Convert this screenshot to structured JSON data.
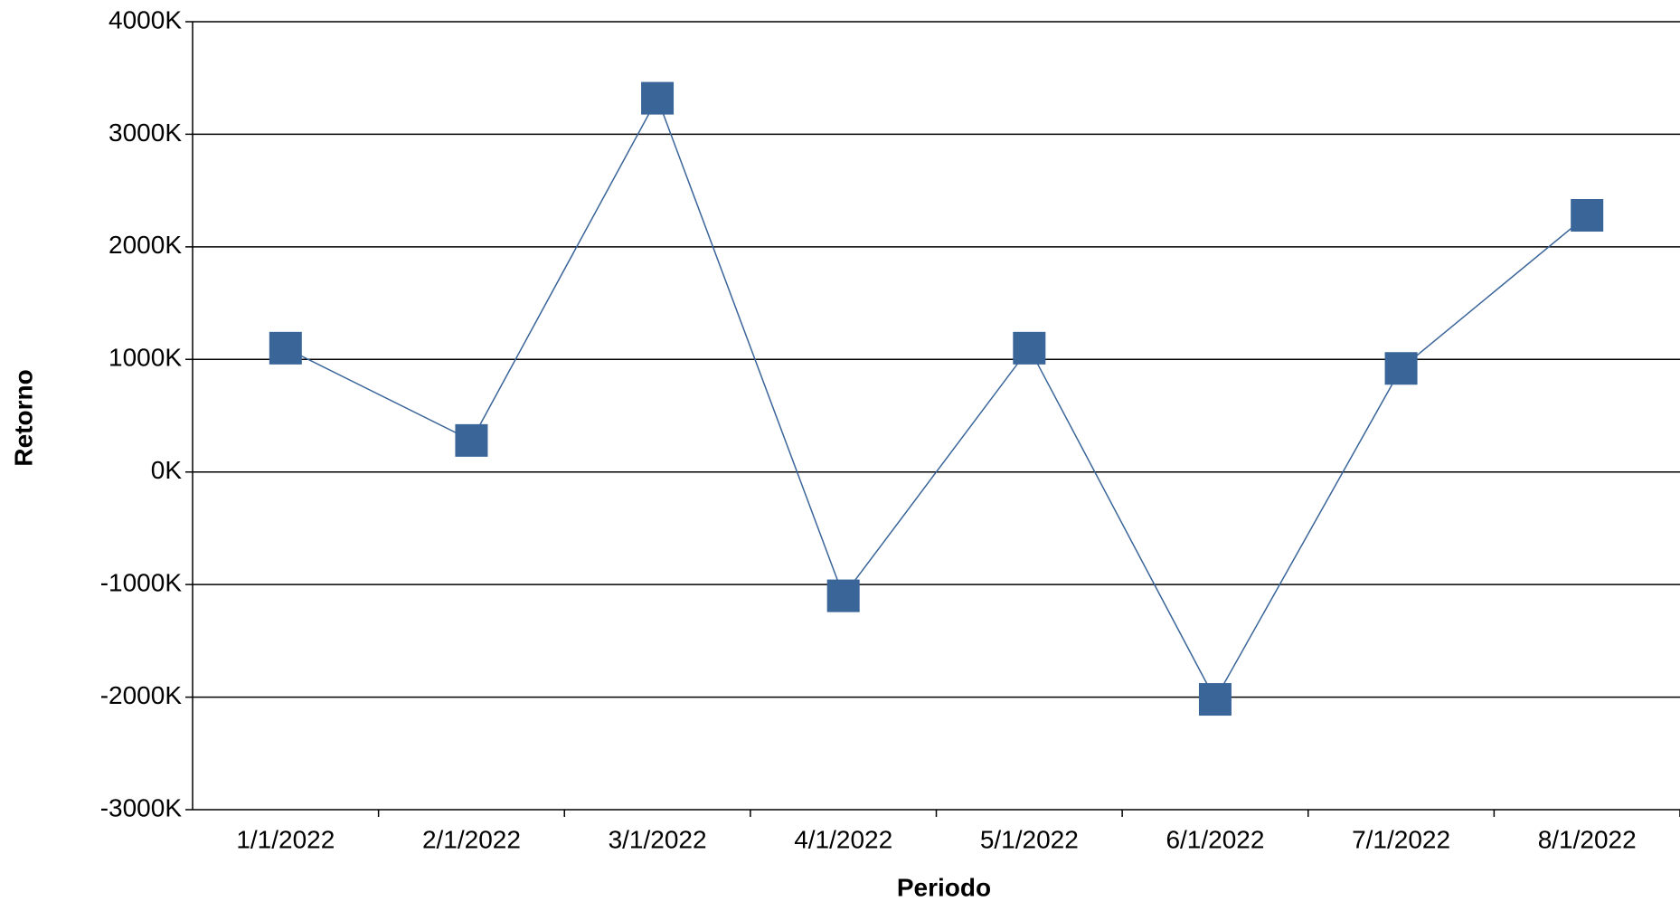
{
  "chart_data": {
    "type": "line",
    "x_label": "Periodo",
    "y_label": "Retorno",
    "categories": [
      "1/1/2022",
      "2/1/2022",
      "3/1/2022",
      "4/1/2022",
      "5/1/2022",
      "6/1/2022",
      "7/1/2022",
      "8/1/2022"
    ],
    "values": [
      1100000,
      280000,
      3320000,
      -1100000,
      1100000,
      -2020000,
      920000,
      2280000
    ],
    "color": "#3a6599",
    "ylim": [
      -3000000,
      4000000
    ],
    "yticks": [
      {
        "value": -3000000,
        "label": "-3000K"
      },
      {
        "value": -2000000,
        "label": "-2000K"
      },
      {
        "value": -1000000,
        "label": "-1000K"
      },
      {
        "value": 0,
        "label": "0K"
      },
      {
        "value": 1000000,
        "label": "1000K"
      },
      {
        "value": 2000000,
        "label": "2000K"
      },
      {
        "value": 3000000,
        "label": "3000K"
      },
      {
        "value": 4000000,
        "label": "4000K"
      }
    ],
    "grid": true
  }
}
